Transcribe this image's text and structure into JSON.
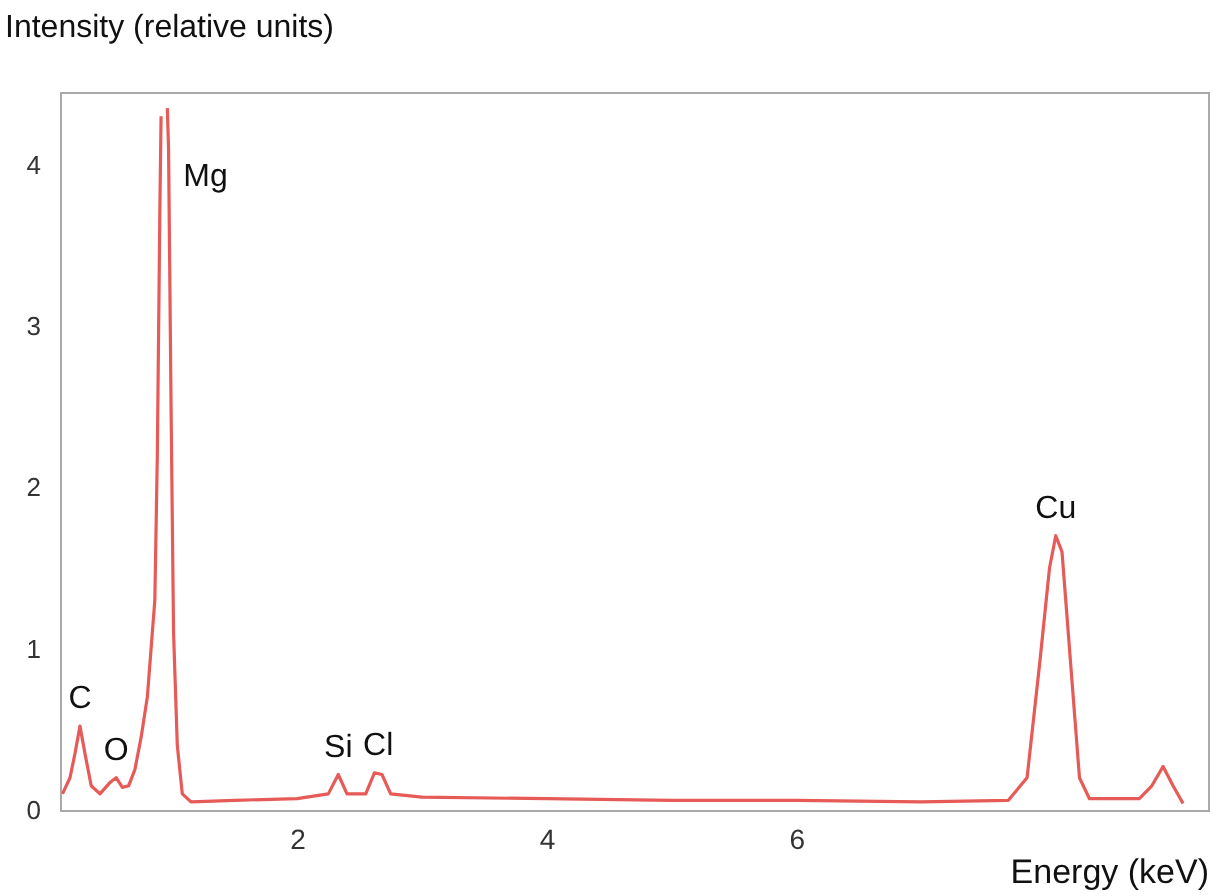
{
  "chart_data": {
    "type": "line",
    "xlabel": "Energy (keV)",
    "ylabel": "Intensity (relative units)",
    "xlim": [
      0.1,
      9.3
    ],
    "ylim": [
      0,
      4.45
    ],
    "xticks": [
      2,
      4,
      6
    ],
    "yticks": [
      0,
      1,
      2,
      3,
      4
    ],
    "grid": false,
    "marker": "none",
    "line_style": "solid",
    "series": [
      {
        "color": "#e65a57",
        "x": [
          0.12,
          0.18,
          0.22,
          0.26,
          0.3,
          0.35,
          0.42,
          0.5,
          0.55,
          0.6,
          0.65,
          0.7,
          0.75,
          0.8,
          0.83,
          0.86,
          0.88,
          0.9,
          0.91,
          0.93,
          0.96,
          0.97,
          0.99,
          1.01,
          1.04,
          1.08,
          1.15,
          1.5,
          2.0,
          2.25,
          2.33,
          2.4,
          2.55,
          2.62,
          2.68,
          2.75,
          3.0,
          4.0,
          5.0,
          6.0,
          7.0,
          7.7,
          7.85,
          7.95,
          8.03,
          8.08,
          8.13,
          8.2,
          8.27,
          8.35,
          8.75,
          8.85,
          8.94,
          9.02,
          9.1
        ],
        "values": [
          0.1,
          0.2,
          0.35,
          0.52,
          0.35,
          0.15,
          0.1,
          0.17,
          0.2,
          0.14,
          0.15,
          0.25,
          0.45,
          0.7,
          1.0,
          1.3,
          2.2,
          3.7,
          4.3,
          null,
          4.35,
          4.1,
          2.5,
          1.1,
          0.4,
          0.1,
          0.05,
          0.06,
          0.07,
          0.1,
          0.22,
          0.1,
          0.1,
          0.23,
          0.22,
          0.1,
          0.08,
          0.07,
          0.06,
          0.06,
          0.05,
          0.06,
          0.2,
          0.9,
          1.5,
          1.7,
          1.6,
          0.9,
          0.2,
          0.07,
          0.07,
          0.15,
          0.27,
          0.15,
          0.04
        ]
      }
    ],
    "annotations": [
      {
        "text": "C",
        "x": 0.26,
        "y": 0.52
      },
      {
        "text": "O",
        "x": 0.55,
        "y": 0.2
      },
      {
        "text": "Mg",
        "x": 0.96,
        "y": 4.35
      },
      {
        "text": "Si",
        "x": 2.33,
        "y": 0.22
      },
      {
        "text": "Cl",
        "x": 2.65,
        "y": 0.23
      },
      {
        "text": "Cu",
        "x": 8.08,
        "y": 1.7
      }
    ]
  }
}
